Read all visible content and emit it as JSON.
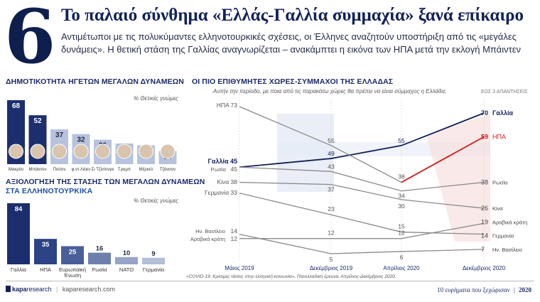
{
  "header": {
    "number": "6",
    "title": "Το παλαιό σύνθημα «Ελλάς-Γαλλία συμμαχία» ξανά επίκαιρο",
    "subtitle_line1": "Αντιμέτωποι με τις πολυκύμαντες ελληνοτουρκικές σχέσεις, οι Έλληνες αναζητούν υποστήριξη από τις «μεγάλες",
    "subtitle_line2": "δυνάμεις». Η θετική στάση της Γαλλίας αναγνωρίζεται – ανακάμπτει η εικόνα των ΗΠΑ μετά την εκλογή Μπάιντεν"
  },
  "footer": {
    "brand_kapa": "kapa",
    "brand_research": "research",
    "url": "kaparesearch.com",
    "right_text": "10 ευρήματα που ξεχώρισαν",
    "year": "2020"
  },
  "chart_data": [
    {
      "type": "bar",
      "title": "ΔΗΜΟΤΙΚΟΤΗΤΑ ΗΓΕΤΩΝ ΜΕΓΑΛΩΝ ΔΥΝΑΜΕΩΝ",
      "note": "% Θετικές γνώμες",
      "categories": [
        "Μακρόν",
        "Μπάιντεν",
        "Πούτιν",
        "φ.ντ.Λάιεν",
        "Σι Τζίνπινγκ",
        "Τραμπ",
        "Μέρκελ",
        "Τζόνσον"
      ],
      "values": [
        68,
        52,
        37,
        32,
        26,
        22,
        20,
        14
      ],
      "highlight_color": "#1c2e6e",
      "color": "#b7c3dd"
    },
    {
      "type": "bar",
      "title": "ΑΞΙΟΛΟΓΗΣΗ ΤΗΣ ΣΤΑΣΗΣ ΤΩΝ ΜΕΓΑΛΩΝ ΔΥΝΑΜΕΩΝ",
      "title2": "ΣΤΑ ΕΛΛΗΝΟΤΟΥΡΚΙΚΑ",
      "note": "% Θετικές γνώμες",
      "categories": [
        "Γαλλία",
        "ΗΠΑ",
        "Ευρωπαϊκή Ένωση",
        "Ρωσία",
        "ΝΑΤΟ",
        "Γερμανία"
      ],
      "values": [
        84,
        35,
        25,
        16,
        10,
        9
      ],
      "colors": [
        "#1c2e6e",
        "#2c4486",
        "#4a5f98",
        "#6e7fae",
        "#96a4c6",
        "#b3bed8"
      ]
    },
    {
      "type": "line",
      "title": "ΟΙ ΠΙΟ ΕΠΙΘΥΜΗΤΕΣ ΧΩΡΕΣ-ΣΥΜΜΑΧΟΙ ΤΗΣ ΕΛΛΑΔΑΣ",
      "question": "Αυτήν την περίοδο, με ποια από τις παρακάτω χώρες θα πρέπει να είναι σύμμαχος η Ελλάδα;",
      "note": "ΕΩΣ 3 ΑΠΑΝΤΗΣΕΙΣ",
      "x": [
        "Μάιος 2019",
        "Δεκέμβριος 2019",
        "Απρίλιος 2020",
        "Δεκέμβριος 2020"
      ],
      "ylim": [
        0,
        80
      ],
      "series": [
        {
          "name": "Γαλλία",
          "values": [
            45,
            49,
            55,
            70
          ],
          "color": "#12215a",
          "bold": true
        },
        {
          "name": "ΗΠΑ",
          "values": [
            73,
            55,
            38,
            59
          ],
          "color": "#8a8a8a",
          "last_color": "#d11a1a"
        },
        {
          "name": "Ρωσία",
          "values": [
            45,
            43,
            34,
            38
          ],
          "color": "#8a8a8a"
        },
        {
          "name": "Κίνα",
          "values": [
            38,
            37,
            30,
            26
          ],
          "color": "#8a8a8a"
        },
        {
          "name": "Γερμανία",
          "values": [
            33,
            23,
            15,
            14
          ],
          "color": "#8a8a8a"
        },
        {
          "name": "Αραβικά κράτη",
          "values": [
            12,
            12,
            12,
            19
          ],
          "color": "#8a8a8a"
        },
        {
          "name": "Ην. Βασίλειο",
          "values": [
            14,
            5,
            6,
            7
          ],
          "color": "#8a8a8a"
        }
      ],
      "start_labels": {
        "ΗΠΑ": "ΗΠΑ 73",
        "Γαλλία": "Γαλλία 45",
        "Ρωσία": "Ρωσία",
        "Ρωσία_val": "45",
        "Κίνα": "Κίνα 38",
        "Γερμανία": "Γερμανία 33",
        "Ην. Βασίλειο": "Ην. Βασίλειο",
        "Ην. Βασίλειο_val": "14",
        "Αραβικά κράτη": "Αραβικά κράτη",
        "Αραβικά κράτη_val": "12"
      },
      "source": "«COVID-19: Κρίσιμες τάσεις στην ελληνική κοινωνία», Πανελλαδική έρευνα, Απρίλιος-Δεκέμβριος 2020."
    }
  ]
}
